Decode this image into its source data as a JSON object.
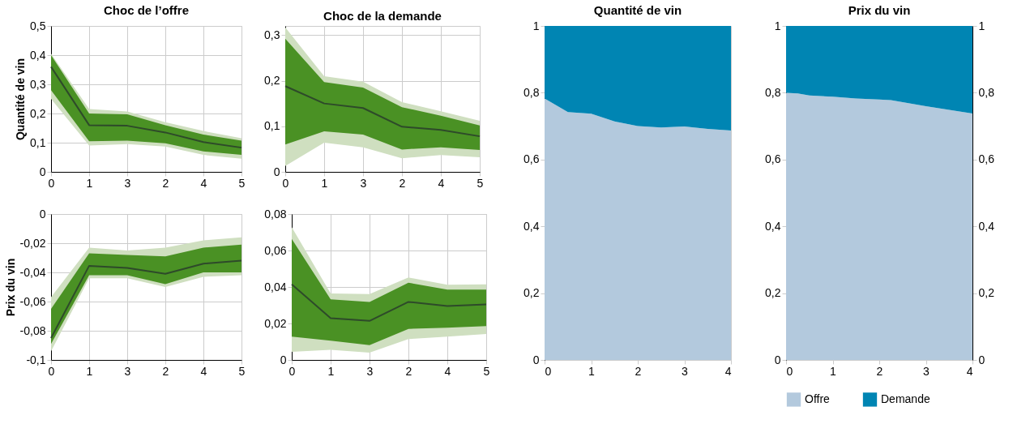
{
  "chart_data": [
    {
      "type": "line",
      "title": "Choc de l’offre",
      "ylabel": "Quantité de vin",
      "categories": [
        "0",
        "1",
        "3",
        "2",
        "4",
        "5"
      ],
      "ylim": [
        0,
        0.5
      ],
      "yticks": [
        0,
        {
          "value": 0.1,
          "label": "0,1"
        },
        {
          "value": 0.2,
          "label": "0,2"
        },
        {
          "value": 0.3,
          "label": "0,3"
        },
        {
          "value": 0.4,
          "label": "0,4"
        },
        {
          "value": 0.5,
          "label": "0,5"
        }
      ],
      "grid": true,
      "series": [
        {
          "color": "#cfdfc0",
          "values": [
            null,
            null,
            null,
            null,
            null,
            null
          ],
          "lower": [
            0.25,
            0.09,
            0.095,
            0.087,
            0.058,
            0.045
          ],
          "upper": [
            0.405,
            0.215,
            0.207,
            0.17,
            0.14,
            0.115
          ]
        },
        {
          "color": "#4a9124",
          "values": [
            null,
            null,
            null,
            null,
            null,
            null
          ],
          "lower": [
            0.28,
            0.105,
            0.107,
            0.098,
            0.07,
            0.058
          ],
          "upper": [
            0.4,
            0.2,
            0.197,
            0.16,
            0.128,
            0.107
          ]
        },
        {
          "color": "#2e4a2a",
          "values": [
            0.36,
            0.16,
            0.158,
            0.135,
            0.102,
            0.083
          ]
        }
      ]
    },
    {
      "type": "line",
      "title": "Choc de la demande",
      "categories": [
        "0",
        "1",
        "3",
        "2",
        "4",
        "5"
      ],
      "ylim": [
        0,
        0.32
      ],
      "yticks": [
        0,
        {
          "value": 0.1,
          "label": "0,1"
        },
        {
          "value": 0.2,
          "label": "0,2"
        },
        {
          "value": 0.3,
          "label": "0,3"
        }
      ],
      "grid": true,
      "series": [
        {
          "color": "#cfdfc0",
          "values": [
            null,
            null,
            null,
            null,
            null,
            null
          ],
          "lower": [
            0.013,
            0.064,
            0.054,
            0.03,
            0.037,
            0.032
          ],
          "upper": [
            0.317,
            0.21,
            0.198,
            0.153,
            0.133,
            0.112
          ]
        },
        {
          "color": "#4a9124",
          "values": [
            null,
            null,
            null,
            null,
            null,
            null
          ],
          "lower": [
            0.06,
            0.089,
            0.082,
            0.049,
            0.054,
            0.048
          ],
          "upper": [
            0.292,
            0.197,
            0.185,
            0.142,
            0.123,
            0.102
          ]
        },
        {
          "color": "#2e4a2a",
          "values": [
            0.188,
            0.15,
            0.14,
            0.099,
            0.092,
            0.078
          ]
        }
      ]
    },
    {
      "type": "line",
      "ylabel": "Prix du vin",
      "categories": [
        "0",
        "1",
        "3",
        "2",
        "4",
        "5"
      ],
      "ylim": [
        -0.1,
        0
      ],
      "yticks": [
        {
          "value": -0.1,
          "label": "-0,1"
        },
        {
          "value": -0.08,
          "label": "-0,08"
        },
        {
          "value": -0.06,
          "label": "-0,06"
        },
        {
          "value": -0.04,
          "label": "-0,04"
        },
        {
          "value": -0.02,
          "label": "-0,02"
        },
        0
      ],
      "grid": true,
      "series": [
        {
          "color": "#cfdfc0",
          "values": [
            null,
            null,
            null,
            null,
            null,
            null
          ],
          "lower": [
            -0.094,
            -0.044,
            -0.044,
            -0.05,
            -0.043,
            -0.042
          ],
          "upper": [
            -0.057,
            -0.023,
            -0.025,
            -0.023,
            -0.018,
            -0.016
          ]
        },
        {
          "color": "#4a9124",
          "values": [
            null,
            null,
            null,
            null,
            null,
            null
          ],
          "lower": [
            -0.089,
            -0.042,
            -0.042,
            -0.048,
            -0.04,
            -0.04
          ],
          "upper": [
            -0.065,
            -0.027,
            -0.028,
            -0.029,
            -0.023,
            -0.021
          ]
        },
        {
          "color": "#2e4a2a",
          "values": [
            -0.085,
            -0.0355,
            -0.037,
            -0.041,
            -0.034,
            -0.032
          ]
        }
      ]
    },
    {
      "type": "line",
      "categories": [
        "0",
        "1",
        "3",
        "2",
        "4",
        "5"
      ],
      "ylim": [
        0,
        0.08
      ],
      "yticks": [
        0,
        {
          "value": 0.02,
          "label": "0,02"
        },
        {
          "value": 0.04,
          "label": "0,04"
        },
        {
          "value": 0.06,
          "label": "0,06"
        },
        {
          "value": 0.08,
          "label": "0,08"
        }
      ],
      "grid": true,
      "series": [
        {
          "color": "#cfdfc0",
          "values": [
            null,
            null,
            null,
            null,
            null,
            null
          ],
          "lower": [
            0.0045,
            0.0056,
            0.004,
            0.0114,
            0.0128,
            0.0142
          ],
          "upper": [
            0.0728,
            0.0364,
            0.0361,
            0.0452,
            0.0412,
            0.0414
          ]
        },
        {
          "color": "#4a9124",
          "values": [
            null,
            null,
            null,
            null,
            null,
            null
          ],
          "lower": [
            0.0128,
            0.0106,
            0.0081,
            0.017,
            0.0177,
            0.0186
          ],
          "upper": [
            0.0663,
            0.0332,
            0.0318,
            0.0423,
            0.0386,
            0.0386
          ]
        },
        {
          "color": "#2e4a2a",
          "values": [
            0.0414,
            0.0229,
            0.0214,
            0.0318,
            0.0296,
            0.0304
          ]
        }
      ]
    },
    {
      "type": "area",
      "stacked": true,
      "title": "Quantité de vin",
      "x": [
        0,
        0.5,
        1,
        1.5,
        2,
        2.5,
        3,
        3.5,
        4
      ],
      "xlim": [
        0,
        4
      ],
      "xticks": [
        0,
        1,
        2,
        3,
        4
      ],
      "ylim": [
        0,
        1
      ],
      "yticks": [
        0,
        {
          "value": 0.2,
          "label": "0,2"
        },
        {
          "value": 0.4,
          "label": "0,4"
        },
        {
          "value": 0.6,
          "label": "0,6"
        },
        {
          "value": 0.8,
          "label": "0,8"
        },
        1
      ],
      "series": [
        {
          "color": "#b3c9dd",
          "values": [
            0.783,
            0.742,
            0.737,
            0.714,
            0.7,
            0.696,
            0.699,
            0.692,
            0.687
          ]
        },
        {
          "color": "#0085b3",
          "values": [
            0.217,
            0.258,
            0.263,
            0.286,
            0.3,
            0.304,
            0.301,
            0.308,
            0.313
          ]
        }
      ]
    },
    {
      "type": "area",
      "stacked": true,
      "title": "Prix du vin",
      "legend": "bottom",
      "x": [
        0,
        0.25,
        0.5,
        1,
        1.5,
        2,
        2.25,
        2.5,
        3,
        3.5,
        4
      ],
      "xlim": [
        0,
        4
      ],
      "xticks": [
        0,
        1,
        2,
        3,
        4
      ],
      "ylim": [
        0,
        1
      ],
      "yticks": [
        0,
        {
          "value": 0.2,
          "label": "0,2"
        },
        {
          "value": 0.4,
          "label": "0,4"
        },
        {
          "value": 0.6,
          "label": "0,6"
        },
        {
          "value": 0.8,
          "label": "0,8"
        },
        1
      ],
      "y2lim": [
        0,
        1
      ],
      "y2ticks": [
        0,
        {
          "value": 0.2,
          "label": "0,2"
        },
        {
          "value": 0.4,
          "label": "0,4"
        },
        {
          "value": 0.6,
          "label": "0,6"
        },
        {
          "value": 0.8,
          "label": "0,8"
        },
        1
      ],
      "series": [
        {
          "name": "Offre",
          "color": "#b3c9dd",
          "values": [
            0.8,
            0.798,
            0.792,
            0.788,
            0.783,
            0.78,
            0.778,
            0.772,
            0.76,
            0.749,
            0.738
          ]
        },
        {
          "name": "Demande",
          "color": "#0085b3",
          "axis": "y2",
          "values": [
            0.2,
            0.202,
            0.208,
            0.212,
            0.217,
            0.22,
            0.222,
            0.228,
            0.24,
            0.251,
            0.262
          ]
        }
      ]
    }
  ]
}
